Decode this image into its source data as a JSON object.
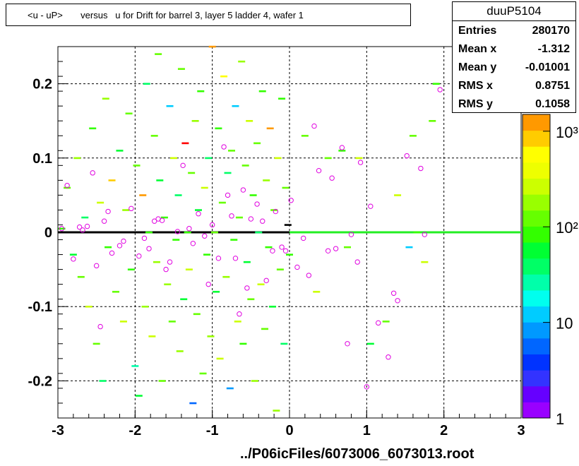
{
  "title": "<u - uP>       versus   u for Drift for barrel 3, layer 5 ladder 4, wafer 1",
  "stats": {
    "name": "duuP5104",
    "rows": [
      {
        "label": "Entries",
        "value": "280170"
      },
      {
        "label": "Mean x",
        "value": "-1.312"
      },
      {
        "label": "Mean y",
        "value": "-0.01001"
      },
      {
        "label": "RMS x",
        "value": "0.8751"
      },
      {
        "label": "RMS y",
        "value": "0.1058"
      }
    ]
  },
  "file_label": "../P06icFiles/6073006_6073013.root",
  "chart_data": {
    "type": "heatmap",
    "title": "<u - uP>       versus   u for Drift for barrel 3, layer 5 ladder 4, wafer 1",
    "xlim": [
      -3,
      3
    ],
    "ylim": [
      -0.25,
      0.25
    ],
    "x_ticks": [
      -3,
      -2,
      -1,
      0,
      1,
      2,
      3
    ],
    "x_tick_labels": [
      "-3",
      "-2",
      "-1",
      "0",
      "1",
      "2",
      "3"
    ],
    "y_ticks": [
      -0.2,
      -0.1,
      0,
      0.1,
      0.2
    ],
    "y_tick_labels": [
      "-0.2",
      "-0.1",
      "0",
      "0.1",
      "0.2"
    ],
    "grid": true,
    "color_scale": {
      "log": true,
      "min": 1,
      "max": 1500,
      "ticks": [
        {
          "value": 1,
          "label": "1"
        },
        {
          "value": 10,
          "label": "10"
        },
        {
          "value": 100,
          "label": "10²"
        },
        {
          "value": 1000,
          "label": "10³"
        }
      ],
      "colors": [
        "#9900ff",
        "#6600ff",
        "#3333ff",
        "#0033ff",
        "#0066ff",
        "#0099ff",
        "#00ccff",
        "#00ffee",
        "#00ffaa",
        "#00ff66",
        "#00ff33",
        "#33ff00",
        "#66ff00",
        "#99ff00",
        "#ccff00",
        "#eeff00",
        "#ffff00",
        "#ffcc00",
        "#ff9900"
      ]
    },
    "bands": [
      {
        "x": [
          -3,
          0
        ],
        "y": 0,
        "color": "#000000"
      },
      {
        "x": [
          0,
          3
        ],
        "y": 0,
        "color": "#22ee22"
      }
    ],
    "cells": [
      [
        -2.95,
        0.005,
        "#33ff00"
      ],
      [
        -2.88,
        0.06,
        "#66ff00"
      ],
      [
        -2.8,
        -0.03,
        "#00ff33"
      ],
      [
        -2.75,
        0.1,
        "#99ff00"
      ],
      [
        -2.7,
        -0.06,
        "#66ff00"
      ],
      [
        -2.65,
        0.02,
        "#00ff66"
      ],
      [
        -2.6,
        -0.1,
        "#ccff00"
      ],
      [
        -2.55,
        0.14,
        "#33ff00"
      ],
      [
        -2.5,
        -0.15,
        "#66ff00"
      ],
      [
        -2.45,
        0.04,
        "#ccff00"
      ],
      [
        -2.42,
        -0.2,
        "#00ff66"
      ],
      [
        -2.38,
        0.18,
        "#99ff00"
      ],
      [
        -2.35,
        -0.02,
        "#33ff00"
      ],
      [
        -2.3,
        0.07,
        "#ffcc00"
      ],
      [
        -2.25,
        -0.08,
        "#66ff00"
      ],
      [
        -2.2,
        0.11,
        "#00ff33"
      ],
      [
        -2.15,
        -0.12,
        "#ccff00"
      ],
      [
        -2.12,
        0.03,
        "#99ff00"
      ],
      [
        -2.08,
        0.16,
        "#66ff00"
      ],
      [
        -2.05,
        -0.05,
        "#33ff00"
      ],
      [
        -2.0,
        -0.18,
        "#00ffaa"
      ],
      [
        -1.98,
        0.09,
        "#66ff00"
      ],
      [
        -1.95,
        -0.22,
        "#00ff33"
      ],
      [
        -1.9,
        0.05,
        "#ff9900"
      ],
      [
        -1.87,
        -0.1,
        "#99ff00"
      ],
      [
        -1.85,
        0.2,
        "#00ff66"
      ],
      [
        -1.82,
        0.0,
        "#33ff00"
      ],
      [
        -1.78,
        -0.14,
        "#ccff00"
      ],
      [
        -1.75,
        0.13,
        "#66ff00"
      ],
      [
        -1.72,
        -0.04,
        "#99ff00"
      ],
      [
        -1.7,
        0.24,
        "#66ff00"
      ],
      [
        -1.68,
        0.07,
        "#00ff33"
      ],
      [
        -1.65,
        -0.2,
        "#66ff00"
      ],
      [
        -1.62,
        0.02,
        "#33ff00"
      ],
      [
        -1.58,
        -0.07,
        "#99ff00"
      ],
      [
        -1.55,
        0.17,
        "#00ccff"
      ],
      [
        -1.52,
        -0.12,
        "#66ff00"
      ],
      [
        -1.5,
        0.1,
        "#ccff00"
      ],
      [
        -1.47,
        -0.01,
        "#33ff00"
      ],
      [
        -1.44,
        0.05,
        "#00ff66"
      ],
      [
        -1.42,
        -0.16,
        "#99ff00"
      ],
      [
        -1.4,
        0.22,
        "#66ff00"
      ],
      [
        -1.37,
        -0.09,
        "#00ff33"
      ],
      [
        -1.35,
        0.12,
        "#ff0000"
      ],
      [
        -1.32,
        0.0,
        "#33ff00"
      ],
      [
        -1.3,
        -0.05,
        "#ccff00"
      ],
      [
        -1.27,
        0.08,
        "#66ff00"
      ],
      [
        -1.25,
        -0.23,
        "#0066ff"
      ],
      [
        -1.22,
        0.15,
        "#99ff00"
      ],
      [
        -1.2,
        -0.11,
        "#66ff00"
      ],
      [
        -1.18,
        0.03,
        "#00ff33"
      ],
      [
        -1.15,
        0.19,
        "#33ff00"
      ],
      [
        -1.12,
        -0.19,
        "#66ff00"
      ],
      [
        -1.1,
        0.06,
        "#ccff00"
      ],
      [
        -1.07,
        -0.03,
        "#33ff00"
      ],
      [
        -1.05,
        0.1,
        "#00ff66"
      ],
      [
        -1.02,
        -0.14,
        "#99ff00"
      ],
      [
        -1.0,
        0.25,
        "#ff9900"
      ],
      [
        -0.97,
        0.0,
        "#66ff00"
      ],
      [
        -0.95,
        -0.08,
        "#00ff33"
      ],
      [
        -0.92,
        0.14,
        "#33ff00"
      ],
      [
        -0.9,
        -0.17,
        "#ccff00"
      ],
      [
        -0.87,
        0.04,
        "#66ff00"
      ],
      [
        -0.85,
        0.21,
        "#ffff00"
      ],
      [
        -0.82,
        -0.06,
        "#99ff00"
      ],
      [
        -0.8,
        0.08,
        "#00ff66"
      ],
      [
        -0.77,
        -0.21,
        "#0099ff"
      ],
      [
        -0.75,
        0.11,
        "#66ff00"
      ],
      [
        -0.72,
        -0.01,
        "#33ff00"
      ],
      [
        -0.7,
        0.17,
        "#00ccff"
      ],
      [
        -0.67,
        -0.12,
        "#ccff00"
      ],
      [
        -0.65,
        0.02,
        "#66ff00"
      ],
      [
        -0.62,
        0.23,
        "#99ff00"
      ],
      [
        -0.6,
        -0.15,
        "#33ff00"
      ],
      [
        -0.57,
        0.09,
        "#66ff00"
      ],
      [
        -0.55,
        -0.04,
        "#00ff33"
      ],
      [
        -0.52,
        0.15,
        "#ccff00"
      ],
      [
        -0.5,
        -0.09,
        "#66ff00"
      ],
      [
        -0.47,
        0.05,
        "#33ff00"
      ],
      [
        -0.45,
        -0.2,
        "#99ff00"
      ],
      [
        -0.42,
        0.12,
        "#66ff00"
      ],
      [
        -0.4,
        0.0,
        "#00ff66"
      ],
      [
        -0.37,
        -0.07,
        "#ccff00"
      ],
      [
        -0.35,
        0.19,
        "#33ff00"
      ],
      [
        -0.32,
        -0.13,
        "#66ff00"
      ],
      [
        -0.3,
        0.07,
        "#99ff00"
      ],
      [
        -0.27,
        -0.02,
        "#33ff00"
      ],
      [
        -0.25,
        0.14,
        "#ff9900"
      ],
      [
        -0.22,
        -0.1,
        "#00ff33"
      ],
      [
        -0.2,
        0.03,
        "#66ff00"
      ],
      [
        -0.17,
        -0.24,
        "#99ff00"
      ],
      [
        -0.15,
        0.1,
        "#ccff00"
      ],
      [
        -0.12,
        -0.05,
        "#66ff00"
      ],
      [
        -0.1,
        0.18,
        "#33ff00"
      ],
      [
        -0.07,
        -0.15,
        "#00ff66"
      ],
      [
        -0.05,
        0.06,
        "#66ff00"
      ],
      [
        -0.02,
        0.01,
        "#000000"
      ],
      [
        0.0,
        -0.03,
        "#33ff00"
      ],
      [
        0.2,
        0.13,
        "#66ff00"
      ],
      [
        0.35,
        -0.08,
        "#ccff00"
      ],
      [
        0.5,
        0.1,
        "#66ff00"
      ],
      [
        0.68,
        0.11,
        "#33ff00"
      ],
      [
        0.75,
        -0.02,
        "#66ff00"
      ],
      [
        0.9,
        0.1,
        "#ccff00"
      ],
      [
        1.05,
        -0.15,
        "#00ff33"
      ],
      [
        1.25,
        -0.12,
        "#66ff00"
      ],
      [
        1.4,
        0.05,
        "#ccff00"
      ],
      [
        1.55,
        -0.02,
        "#00ccff"
      ],
      [
        1.6,
        0.13,
        "#66ff00"
      ],
      [
        1.65,
        0.0,
        "#33ff00"
      ],
      [
        1.75,
        -0.04,
        "#ccff00"
      ],
      [
        1.85,
        0.15,
        "#66ff00"
      ],
      [
        1.9,
        0.2,
        "#33ff00"
      ]
    ],
    "markers": [
      [
        -2.95,
        0.005
      ],
      [
        -2.88,
        0.063
      ],
      [
        -2.8,
        -0.036
      ],
      [
        -2.72,
        0.007
      ],
      [
        -2.68,
        0.003
      ],
      [
        -2.62,
        0.008
      ],
      [
        -2.55,
        0.08
      ],
      [
        -2.5,
        -0.045
      ],
      [
        -2.45,
        -0.127
      ],
      [
        -2.4,
        0.015
      ],
      [
        -2.35,
        0.028
      ],
      [
        -2.3,
        -0.028
      ],
      [
        -2.2,
        -0.018
      ],
      [
        -2.15,
        -0.012
      ],
      [
        -2.05,
        0.032
      ],
      [
        -1.95,
        -0.032
      ],
      [
        -1.88,
        -0.008
      ],
      [
        -1.82,
        -0.022
      ],
      [
        -1.75,
        0.015
      ],
      [
        -1.7,
        0.018
      ],
      [
        -1.65,
        0.016
      ],
      [
        -1.6,
        -0.05
      ],
      [
        -1.55,
        -0.04
      ],
      [
        -1.45,
        0.001
      ],
      [
        -1.38,
        0.09
      ],
      [
        -1.3,
        0.005
      ],
      [
        -1.25,
        -0.015
      ],
      [
        -1.18,
        0.025
      ],
      [
        -1.1,
        -0.005
      ],
      [
        -1.05,
        -0.07
      ],
      [
        -1.0,
        0.01
      ],
      [
        -0.92,
        -0.035
      ],
      [
        -0.85,
        0.115
      ],
      [
        -0.8,
        0.05
      ],
      [
        -0.75,
        0.022
      ],
      [
        -0.7,
        -0.035
      ],
      [
        -0.65,
        -0.11
      ],
      [
        -0.6,
        0.057
      ],
      [
        -0.55,
        -0.075
      ],
      [
        -0.5,
        0.018
      ],
      [
        -0.42,
        0.038
      ],
      [
        -0.35,
        0.015
      ],
      [
        -0.3,
        -0.065
      ],
      [
        -0.22,
        -0.025
      ],
      [
        -0.18,
        0.028
      ],
      [
        -0.1,
        -0.02
      ],
      [
        -0.05,
        -0.025
      ],
      [
        0.02,
        0.043
      ],
      [
        0.1,
        -0.047
      ],
      [
        0.18,
        -0.008
      ],
      [
        0.25,
        -0.058
      ],
      [
        0.32,
        0.143
      ],
      [
        0.38,
        0.083
      ],
      [
        0.5,
        -0.025
      ],
      [
        0.55,
        0.073
      ],
      [
        0.6,
        -0.022
      ],
      [
        0.68,
        0.114
      ],
      [
        0.75,
        -0.15
      ],
      [
        0.8,
        -0.003
      ],
      [
        0.88,
        -0.04
      ],
      [
        0.92,
        0.094
      ],
      [
        1.0,
        -0.208
      ],
      [
        1.05,
        0.035
      ],
      [
        1.15,
        -0.122
      ],
      [
        1.28,
        -0.168
      ],
      [
        1.35,
        -0.082
      ],
      [
        1.4,
        -0.092
      ],
      [
        1.52,
        0.103
      ],
      [
        1.7,
        0.086
      ],
      [
        1.75,
        -0.003
      ],
      [
        1.95,
        0.192
      ]
    ]
  }
}
